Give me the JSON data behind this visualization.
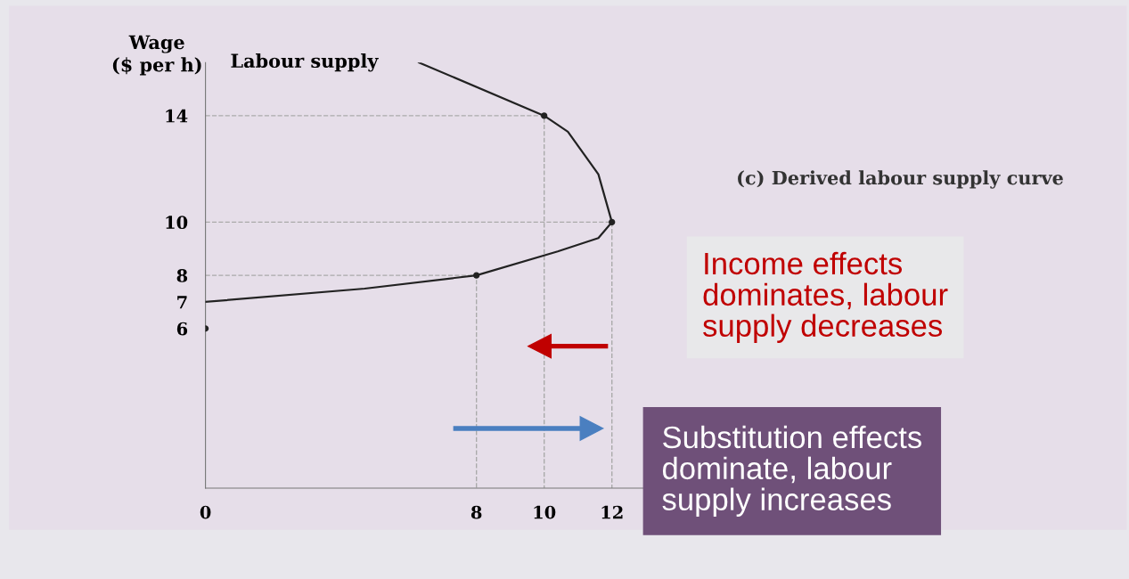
{
  "chart_data": {
    "type": "line",
    "title": "(c) Derived labour supply curve",
    "ylabel": "Wage\n($ per h)",
    "series": [
      {
        "name": "Labour supply",
        "color": "#222222",
        "x": [
          0,
          4.7,
          8,
          10.4,
          11.6,
          12,
          11.6,
          10.7,
          10,
          6.3
        ],
        "values": [
          7,
          7.5,
          8,
          8.9,
          9.4,
          10,
          11.8,
          13.4,
          14,
          16
        ],
        "marker": "none",
        "line_style": "solid"
      },
      {
        "type": "scatter",
        "color": "#222222",
        "x": [
          0,
          8,
          12,
          10
        ],
        "values": [
          6,
          8,
          10,
          14
        ],
        "marker": "circle"
      },
      {
        "color": "#aaaaaa",
        "x": [
          0,
          8,
          8
        ],
        "values": [
          8,
          8,
          0
        ],
        "line_style": "dashed",
        "marker": "none"
      },
      {
        "color": "#aaaaaa",
        "x": [
          0,
          12,
          12
        ],
        "values": [
          10,
          10,
          0
        ],
        "line_style": "dashed",
        "marker": "none"
      },
      {
        "color": "#aaaaaa",
        "x": [
          0,
          10,
          10
        ],
        "values": [
          14,
          14,
          0
        ],
        "line_style": "dashed",
        "marker": "none"
      }
    ],
    "xlim": [
      0,
      13
    ],
    "ylim": [
      0,
      16
    ],
    "xticks": [
      0,
      8,
      10,
      12
    ],
    "yticks": [
      6,
      7,
      8,
      10,
      14
    ],
    "grid": false,
    "legend": false,
    "annotations": [
      "Income effects\ndominates, labour\nsupply decreases",
      "Substitution effects\ndominate, labour\nsupply increases"
    ]
  }
}
